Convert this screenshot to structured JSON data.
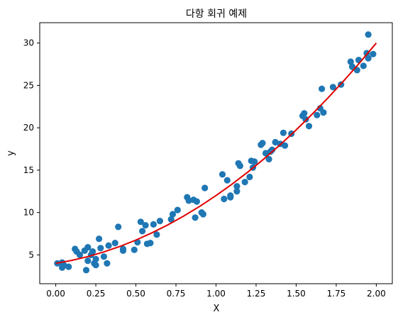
{
  "chart_data": {
    "type": "scatter",
    "title": "다항 회귀 예제",
    "xlabel": "X",
    "ylabel": "y",
    "xlim": [
      -0.1,
      2.1
    ],
    "ylim": [
      1.6,
      32.4
    ],
    "xticks": [
      "0.00",
      "0.25",
      "0.50",
      "0.75",
      "1.00",
      "1.25",
      "1.50",
      "1.75",
      "2.00"
    ],
    "yticks": [
      "5",
      "10",
      "15",
      "20",
      "25",
      "30"
    ],
    "grid": false,
    "colors": {
      "points": "#1f77b4",
      "fit_line": "#e00000"
    },
    "series": [
      {
        "kind": "scatter",
        "points": [
          [
            0.01,
            4.0
          ],
          [
            0.04,
            4.1
          ],
          [
            0.04,
            3.5
          ],
          [
            0.05,
            3.8
          ],
          [
            0.08,
            3.6
          ],
          [
            0.12,
            5.7
          ],
          [
            0.13,
            5.4
          ],
          [
            0.15,
            5.0
          ],
          [
            0.18,
            5.5
          ],
          [
            0.19,
            3.2
          ],
          [
            0.2,
            5.9
          ],
          [
            0.2,
            4.3
          ],
          [
            0.22,
            5.0
          ],
          [
            0.23,
            5.4
          ],
          [
            0.24,
            4.0
          ],
          [
            0.25,
            3.8
          ],
          [
            0.25,
            4.5
          ],
          [
            0.27,
            6.9
          ],
          [
            0.28,
            5.8
          ],
          [
            0.3,
            4.8
          ],
          [
            0.32,
            4.0
          ],
          [
            0.33,
            6.1
          ],
          [
            0.37,
            6.4
          ],
          [
            0.39,
            8.3
          ],
          [
            0.42,
            5.5
          ],
          [
            0.42,
            5.7
          ],
          [
            0.49,
            5.6
          ],
          [
            0.51,
            6.5
          ],
          [
            0.53,
            8.9
          ],
          [
            0.54,
            7.8
          ],
          [
            0.56,
            8.5
          ],
          [
            0.57,
            6.3
          ],
          [
            0.59,
            6.4
          ],
          [
            0.61,
            8.6
          ],
          [
            0.63,
            7.4
          ],
          [
            0.65,
            9.0
          ],
          [
            0.72,
            9.2
          ],
          [
            0.73,
            9.8
          ],
          [
            0.76,
            10.3
          ],
          [
            0.82,
            11.8
          ],
          [
            0.83,
            11.4
          ],
          [
            0.86,
            11.5
          ],
          [
            0.87,
            9.4
          ],
          [
            0.88,
            11.3
          ],
          [
            0.91,
            10.0
          ],
          [
            0.92,
            9.8
          ],
          [
            0.93,
            12.9
          ],
          [
            1.04,
            14.5
          ],
          [
            1.05,
            11.6
          ],
          [
            1.07,
            13.8
          ],
          [
            1.09,
            12.0
          ],
          [
            1.09,
            11.8
          ],
          [
            1.13,
            12.5
          ],
          [
            1.13,
            13.1
          ],
          [
            1.14,
            15.8
          ],
          [
            1.15,
            15.5
          ],
          [
            1.18,
            13.6
          ],
          [
            1.21,
            14.2
          ],
          [
            1.22,
            16.1
          ],
          [
            1.23,
            15.3
          ],
          [
            1.24,
            16.0
          ],
          [
            1.28,
            18.0
          ],
          [
            1.29,
            18.2
          ],
          [
            1.31,
            17.0
          ],
          [
            1.33,
            16.3
          ],
          [
            1.34,
            17.2
          ],
          [
            1.35,
            17.4
          ],
          [
            1.37,
            18.3
          ],
          [
            1.4,
            18.1
          ],
          [
            1.42,
            19.4
          ],
          [
            1.43,
            17.9
          ],
          [
            1.47,
            19.3
          ],
          [
            1.54,
            21.4
          ],
          [
            1.55,
            21.7
          ],
          [
            1.56,
            21.0
          ],
          [
            1.58,
            20.2
          ],
          [
            1.63,
            21.5
          ],
          [
            1.65,
            22.3
          ],
          [
            1.66,
            24.6
          ],
          [
            1.67,
            21.8
          ],
          [
            1.73,
            24.8
          ],
          [
            1.78,
            25.1
          ],
          [
            1.84,
            27.8
          ],
          [
            1.85,
            27.2
          ],
          [
            1.88,
            26.8
          ],
          [
            1.89,
            28.0
          ],
          [
            1.92,
            27.3
          ],
          [
            1.94,
            28.8
          ],
          [
            1.95,
            31.0
          ],
          [
            1.95,
            28.2
          ],
          [
            1.98,
            28.7
          ]
        ]
      },
      {
        "kind": "line",
        "points": [
          [
            0.0,
            4.0
          ],
          [
            0.1,
            4.35
          ],
          [
            0.2,
            4.8
          ],
          [
            0.3,
            5.35
          ],
          [
            0.4,
            6.0
          ],
          [
            0.5,
            6.75
          ],
          [
            0.6,
            7.6
          ],
          [
            0.7,
            8.55
          ],
          [
            0.8,
            9.6
          ],
          [
            0.9,
            10.75
          ],
          [
            1.0,
            12.0
          ],
          [
            1.1,
            13.35
          ],
          [
            1.2,
            14.8
          ],
          [
            1.3,
            16.35
          ],
          [
            1.4,
            18.0
          ],
          [
            1.5,
            19.75
          ],
          [
            1.6,
            21.6
          ],
          [
            1.7,
            23.55
          ],
          [
            1.8,
            25.6
          ],
          [
            1.9,
            27.75
          ],
          [
            2.0,
            30.0
          ]
        ]
      }
    ]
  }
}
